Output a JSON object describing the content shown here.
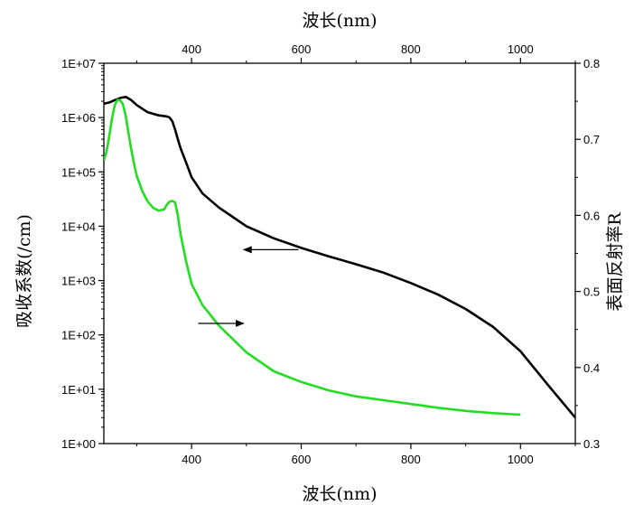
{
  "chart_data": {
    "type": "line",
    "x_axis_bottom": {
      "label": "波长(nm)",
      "range": [
        240,
        1100
      ],
      "ticks": [
        400,
        600,
        800,
        1000
      ]
    },
    "x_axis_top": {
      "label": "波长(nm)",
      "range": [
        240,
        1100
      ],
      "ticks": [
        400,
        600,
        800,
        1000
      ]
    },
    "y_axis_left": {
      "label": "吸收系数(/cm)",
      "scale": "log",
      "range": [
        1,
        10000000
      ],
      "ticks": [
        1,
        10,
        100,
        1000,
        10000,
        100000,
        1000000,
        10000000
      ],
      "tick_labels": [
        "1E+00",
        "1E+01",
        "1E+02",
        "1E+03",
        "1E+04",
        "1E+05",
        "1E+06",
        "1E+07"
      ]
    },
    "y_axis_right": {
      "label": "表面反射率R",
      "scale": "linear",
      "range": [
        0.3,
        0.8
      ],
      "ticks": [
        0.3,
        0.4,
        0.5,
        0.6,
        0.7,
        0.8
      ],
      "tick_labels": [
        "0.3",
        "0.4",
        "0.5",
        "0.6",
        "0.7",
        "0.8"
      ]
    },
    "series": [
      {
        "axis": "left",
        "color": "#000000",
        "x": [
          240,
          250,
          260,
          270,
          280,
          290,
          300,
          320,
          340,
          355,
          360,
          365,
          370,
          375,
          380,
          390,
          400,
          420,
          450,
          500,
          550,
          600,
          650,
          700,
          750,
          800,
          850,
          900,
          950,
          1000,
          1050,
          1100
        ],
        "y": [
          1800000,
          1900000,
          2100000,
          2300000,
          2400000,
          2100000,
          1700000,
          1250000,
          1100000,
          1050000,
          1000000,
          850000,
          600000,
          400000,
          270000,
          150000,
          80000,
          40000,
          22000,
          10000,
          6000,
          4000,
          2800,
          2000,
          1400,
          900,
          550,
          300,
          140,
          50,
          12,
          3
        ]
      },
      {
        "axis": "right",
        "color": "#22dd22",
        "x": [
          240,
          245,
          250,
          255,
          260,
          265,
          270,
          275,
          280,
          285,
          290,
          295,
          300,
          310,
          320,
          330,
          340,
          350,
          355,
          360,
          365,
          370,
          375,
          380,
          390,
          400,
          420,
          450,
          500,
          550,
          600,
          650,
          700,
          750,
          800,
          850,
          900,
          950,
          1000
        ],
        "y": [
          0.672,
          0.684,
          0.705,
          0.728,
          0.745,
          0.752,
          0.751,
          0.746,
          0.73,
          0.708,
          0.687,
          0.668,
          0.652,
          0.632,
          0.618,
          0.61,
          0.606,
          0.608,
          0.614,
          0.618,
          0.619,
          0.617,
          0.6,
          0.575,
          0.54,
          0.51,
          0.482,
          0.455,
          0.42,
          0.395,
          0.381,
          0.37,
          0.362,
          0.357,
          0.352,
          0.347,
          0.343,
          0.34,
          0.338
        ]
      }
    ],
    "annotations": [
      {
        "type": "arrow",
        "direction": "left",
        "from": [
          595,
          3700
        ],
        "to": [
          495,
          3700
        ],
        "axis": "left"
      },
      {
        "type": "arrow",
        "direction": "right",
        "from": [
          412,
          0.458
        ],
        "to": [
          495,
          0.458
        ],
        "axis": "right"
      }
    ],
    "grid": false
  }
}
